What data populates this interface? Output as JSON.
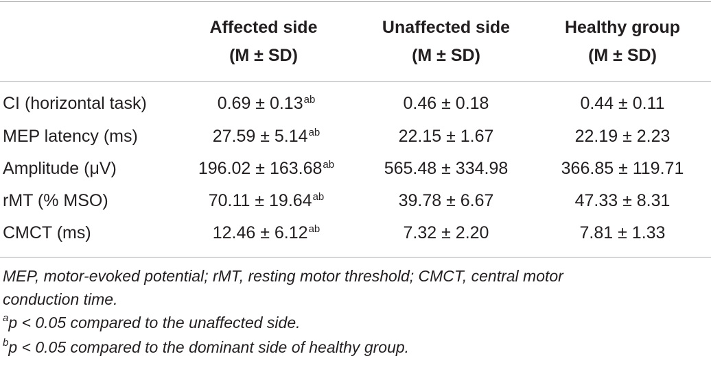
{
  "table": {
    "headers": [
      {
        "line1": "Affected side",
        "line2": "(M ± SD)"
      },
      {
        "line1": "Unaffected side",
        "line2": "(M ± SD)"
      },
      {
        "line1": "Healthy group",
        "line2": "(M ± SD)"
      }
    ],
    "rows": [
      {
        "label": "CI (horizontal task)",
        "affected": "0.69 ± 0.13",
        "affected_sup": "ab",
        "unaffected": "0.46 ± 0.18",
        "healthy": "0.44 ± 0.11"
      },
      {
        "label": "MEP latency (ms)",
        "affected": "27.59 ± 5.14",
        "affected_sup": "ab",
        "unaffected": "22.15 ± 1.67",
        "healthy": "22.19 ± 2.23"
      },
      {
        "label": "Amplitude (μV)",
        "affected": "196.02 ± 163.68",
        "affected_sup": "ab",
        "unaffected": "565.48 ± 334.98",
        "healthy": "366.85 ± 119.71"
      },
      {
        "label": "rMT (% MSO)",
        "affected": "70.11 ± 19.64",
        "affected_sup": "ab",
        "unaffected": "39.78 ± 6.67",
        "healthy": "47.33 ± 8.31"
      },
      {
        "label": "CMCT (ms)",
        "affected": "12.46 ± 6.12",
        "affected_sup": "ab",
        "unaffected": "7.32 ± 2.20",
        "healthy": "7.81 ± 1.33"
      }
    ]
  },
  "footnotes": {
    "abbrev_line1": "MEP, motor-evoked potential; rMT, resting motor threshold; CMCT, central motor",
    "abbrev_line2": "conduction time.",
    "a_mark": "a",
    "a_text": "p < 0.05 compared to the unaffected side.",
    "b_mark": "b",
    "b_text": "p < 0.05 compared to the dominant side of healthy group."
  }
}
